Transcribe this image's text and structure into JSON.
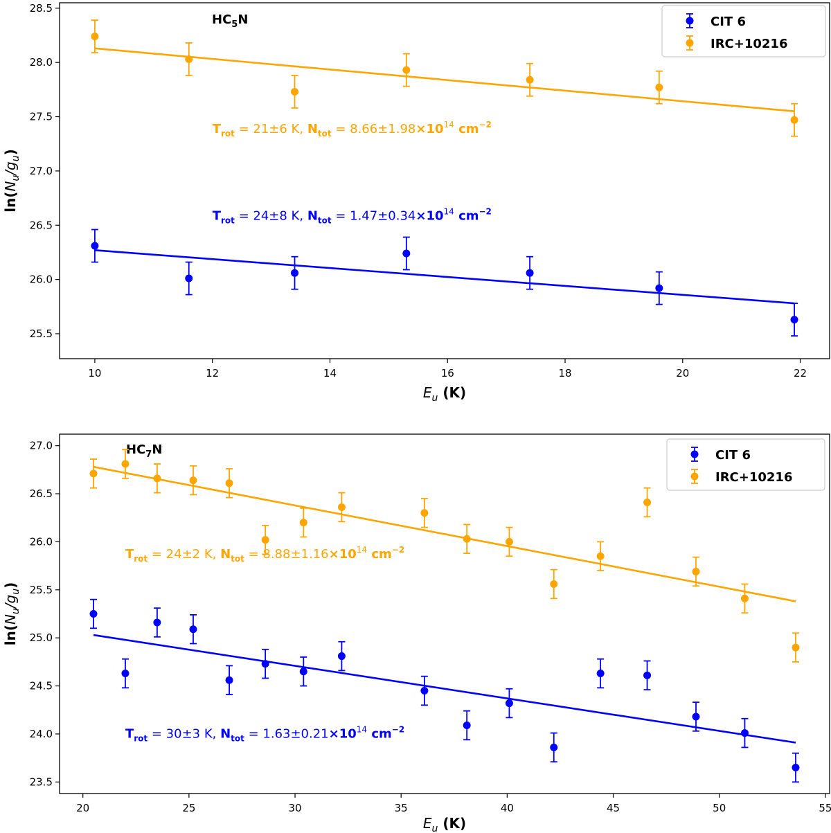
{
  "colors": {
    "cit6": "#0000ff",
    "irc": "#ffa500",
    "axis": "#000000"
  },
  "chart_data": [
    {
      "type": "scatter",
      "title": "HC5N",
      "title_main": "HC",
      "title_sub": "5",
      "title_end": "N",
      "xlabel": "E_u (K)",
      "xlabel_var": "E",
      "xlabel_sub": "u",
      "xlabel_unit": " (K)",
      "ylabel": "ln(N_u/g_u)",
      "xlim": [
        9.4,
        22.5
      ],
      "ylim": [
        25.27,
        28.55
      ],
      "xticks": [
        10,
        12,
        14,
        16,
        18,
        20,
        22
      ],
      "xtick_labels": [
        "10",
        "12",
        "14",
        "16",
        "18",
        "20",
        "22"
      ],
      "yticks": [
        25.5,
        26.0,
        26.5,
        27.0,
        27.5,
        28.0,
        28.5
      ],
      "ytick_labels": [
        "25.5",
        "26.0",
        "26.5",
        "27.0",
        "27.5",
        "28.0",
        "28.5"
      ],
      "legend": [
        "CIT 6",
        "IRC+10216"
      ],
      "legend_position": "top-right",
      "series": [
        {
          "name": "CIT 6",
          "color": "#0000ff",
          "x": [
            10.0,
            11.6,
            13.4,
            15.3,
            17.4,
            19.6,
            21.9
          ],
          "y": [
            26.31,
            26.01,
            26.06,
            26.24,
            26.06,
            25.92,
            25.63
          ],
          "err": [
            0.15,
            0.15,
            0.15,
            0.15,
            0.15,
            0.15,
            0.15
          ],
          "fit": {
            "x": [
              10.0,
              21.9
            ],
            "y": [
              26.27,
              25.78
            ]
          },
          "annotation": {
            "x": 12.0,
            "y": 26.55,
            "pre": "T",
            "pre_sub": "rot",
            "mid": " = 24±8 K, ",
            "n": "N",
            "n_sub": "tot",
            "val": " = 1.47±0.34",
            "times": "×10",
            "exp": "14",
            "unit": " cm",
            "unit_exp": "−2"
          }
        },
        {
          "name": "IRC+10216",
          "color": "#ffa500",
          "x": [
            10.0,
            11.6,
            13.4,
            15.3,
            17.4,
            19.6,
            21.9
          ],
          "y": [
            28.24,
            28.03,
            27.73,
            27.93,
            27.84,
            27.77,
            27.47
          ],
          "err": [
            0.15,
            0.15,
            0.15,
            0.15,
            0.15,
            0.15,
            0.15
          ],
          "fit": {
            "x": [
              10.0,
              21.9
            ],
            "y": [
              28.13,
              27.55
            ]
          },
          "annotation": {
            "x": 12.0,
            "y": 27.35,
            "pre": "T",
            "pre_sub": "rot",
            "mid": " = 21±6 K, ",
            "n": "N",
            "n_sub": "tot",
            "val": " = 8.66±1.98",
            "times": "×10",
            "exp": "14",
            "unit": " cm",
            "unit_exp": "−2"
          }
        }
      ]
    },
    {
      "type": "scatter",
      "title": "HC7N",
      "title_main": "HC",
      "title_sub": "7",
      "title_end": "N",
      "xlabel": "E_u (K)",
      "xlabel_var": "E",
      "xlabel_sub": "u",
      "xlabel_unit": " (K)",
      "ylabel": "ln(N_u/g_u)",
      "xlim": [
        18.9,
        55.2
      ],
      "ylim": [
        23.38,
        27.12
      ],
      "xticks": [
        20,
        25,
        30,
        35,
        40,
        45,
        50,
        55
      ],
      "xtick_labels": [
        "20",
        "25",
        "30",
        "35",
        "40",
        "45",
        "50",
        "55"
      ],
      "yticks": [
        23.5,
        24.0,
        24.5,
        25.0,
        25.5,
        26.0,
        26.5,
        27.0
      ],
      "ytick_labels": [
        "23.5",
        "24.0",
        "24.5",
        "25.0",
        "25.5",
        "26.0",
        "26.5",
        "27.0"
      ],
      "legend": [
        "CIT 6",
        "IRC+10216"
      ],
      "legend_position": "top-right",
      "series": [
        {
          "name": "CIT 6",
          "color": "#0000ff",
          "x": [
            20.5,
            22.0,
            23.5,
            25.2,
            26.9,
            28.6,
            30.4,
            32.2,
            36.1,
            38.1,
            40.1,
            42.2,
            44.4,
            46.6,
            48.9,
            51.2,
            53.6
          ],
          "y": [
            25.25,
            24.63,
            25.16,
            25.09,
            24.56,
            24.73,
            24.65,
            24.81,
            24.45,
            24.09,
            24.32,
            23.86,
            24.63,
            24.61,
            24.18,
            24.01,
            23.65
          ],
          "err": [
            0.15,
            0.15,
            0.15,
            0.15,
            0.15,
            0.15,
            0.15,
            0.15,
            0.15,
            0.15,
            0.15,
            0.15,
            0.15,
            0.15,
            0.15,
            0.15,
            0.15
          ],
          "fit": {
            "x": [
              20.5,
              53.6
            ],
            "y": [
              25.03,
              23.91
            ]
          },
          "annotation": {
            "x": 22.0,
            "y": 23.96,
            "pre": "T",
            "pre_sub": "rot",
            "mid": " = 30±3 K, ",
            "n": "N",
            "n_sub": "tot",
            "val": " = 1.63±0.21",
            "times": "×10",
            "exp": "14",
            "unit": " cm",
            "unit_exp": "−2"
          }
        },
        {
          "name": "IRC+10216",
          "color": "#ffa500",
          "x": [
            20.5,
            22.0,
            23.5,
            25.2,
            26.9,
            28.6,
            30.4,
            32.2,
            36.1,
            38.1,
            40.1,
            42.2,
            44.4,
            46.6,
            48.9,
            51.2,
            53.6
          ],
          "y": [
            26.71,
            26.81,
            26.66,
            26.64,
            26.61,
            26.02,
            26.2,
            26.36,
            26.3,
            26.03,
            26.0,
            25.56,
            25.85,
            26.41,
            25.69,
            25.41,
            24.9
          ],
          "err": [
            0.15,
            0.15,
            0.15,
            0.15,
            0.15,
            0.15,
            0.15,
            0.15,
            0.15,
            0.15,
            0.15,
            0.15,
            0.15,
            0.15,
            0.15,
            0.15,
            0.15
          ],
          "fit": {
            "x": [
              20.5,
              53.6
            ],
            "y": [
              26.78,
              25.38
            ]
          },
          "annotation": {
            "x": 22.0,
            "y": 25.83,
            "pre": "T",
            "pre_sub": "rot",
            "mid": " = 24±2 K, ",
            "n": "N",
            "n_sub": "tot",
            "val": " = 8.88±1.16",
            "times": "×10",
            "exp": "14",
            "unit": " cm",
            "unit_exp": "−2"
          }
        }
      ]
    }
  ]
}
